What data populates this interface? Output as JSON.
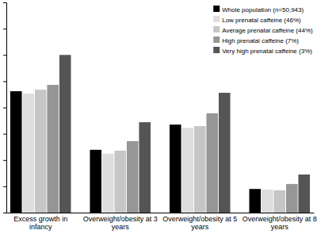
{
  "chart_data": {
    "type": "bar",
    "categories": [
      "Excess growth in infancy",
      "Overweight/obesity at 3 years",
      "Overweight/obesity at 5 years",
      "Overweight/obesity at 8 years"
    ],
    "series": [
      {
        "name": "Whole population (n=50,943)",
        "color": "#000000",
        "values": [
          4.62,
          2.39,
          3.35,
          0.9
        ]
      },
      {
        "name": "Low prenatal caffeine (46%)",
        "color": "#dedede",
        "values": [
          4.53,
          2.24,
          3.23,
          0.88
        ]
      },
      {
        "name": "Average prenatal caffeine (44%)",
        "color": "#c6c6c6",
        "values": [
          4.68,
          2.36,
          3.29,
          0.85
        ]
      },
      {
        "name": "High prenatal caffeine (7%)",
        "color": "#969696",
        "values": [
          4.86,
          2.72,
          3.78,
          1.09
        ]
      },
      {
        "name": "Very high prenatal caffeine (3%)",
        "color": "#555555",
        "values": [
          6.0,
          3.44,
          4.56,
          1.45
        ]
      }
    ],
    "ylim": [
      0,
      8
    ],
    "yticks": [
      0,
      1,
      2,
      3,
      4,
      5,
      6,
      7,
      8
    ],
    "tick_labels": "x",
    "legend": "top-right",
    "grid": false
  }
}
